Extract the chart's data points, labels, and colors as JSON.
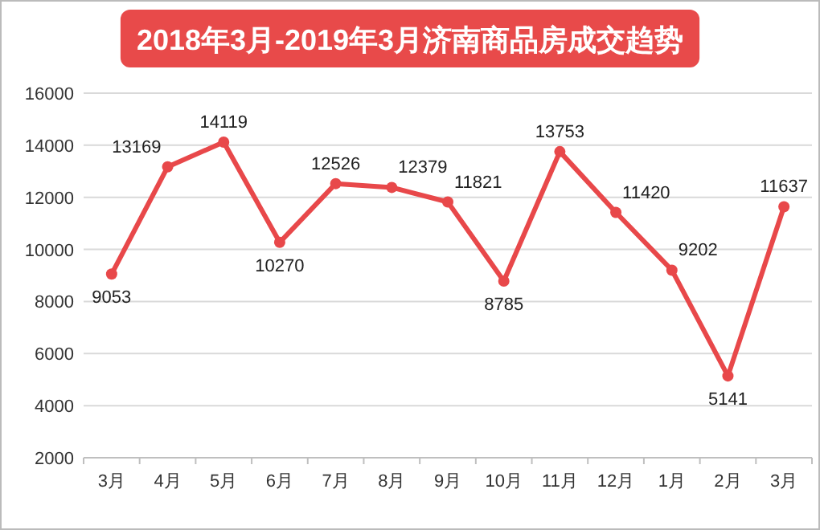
{
  "chart_data": {
    "type": "line",
    "title": "2018年3月-2019年3月济南商品房成交趋势",
    "categories": [
      "3月",
      "4月",
      "5月",
      "6月",
      "7月",
      "8月",
      "9月",
      "10月",
      "11月",
      "12月",
      "1月",
      "2月",
      "3月"
    ],
    "series": [
      {
        "color": "#e8484a",
        "values": [
          9053,
          13169,
          14119,
          10270,
          12526,
          12379,
          11821,
          8785,
          13753,
          11420,
          9202,
          5141,
          11637
        ]
      }
    ],
    "ylim": [
      2000,
      16000
    ],
    "yticks": [
      2000,
      4000,
      6000,
      8000,
      10000,
      12000,
      14000,
      16000
    ],
    "grid": "y",
    "marker": "circle",
    "line_style": "solid",
    "data_labels": true
  }
}
